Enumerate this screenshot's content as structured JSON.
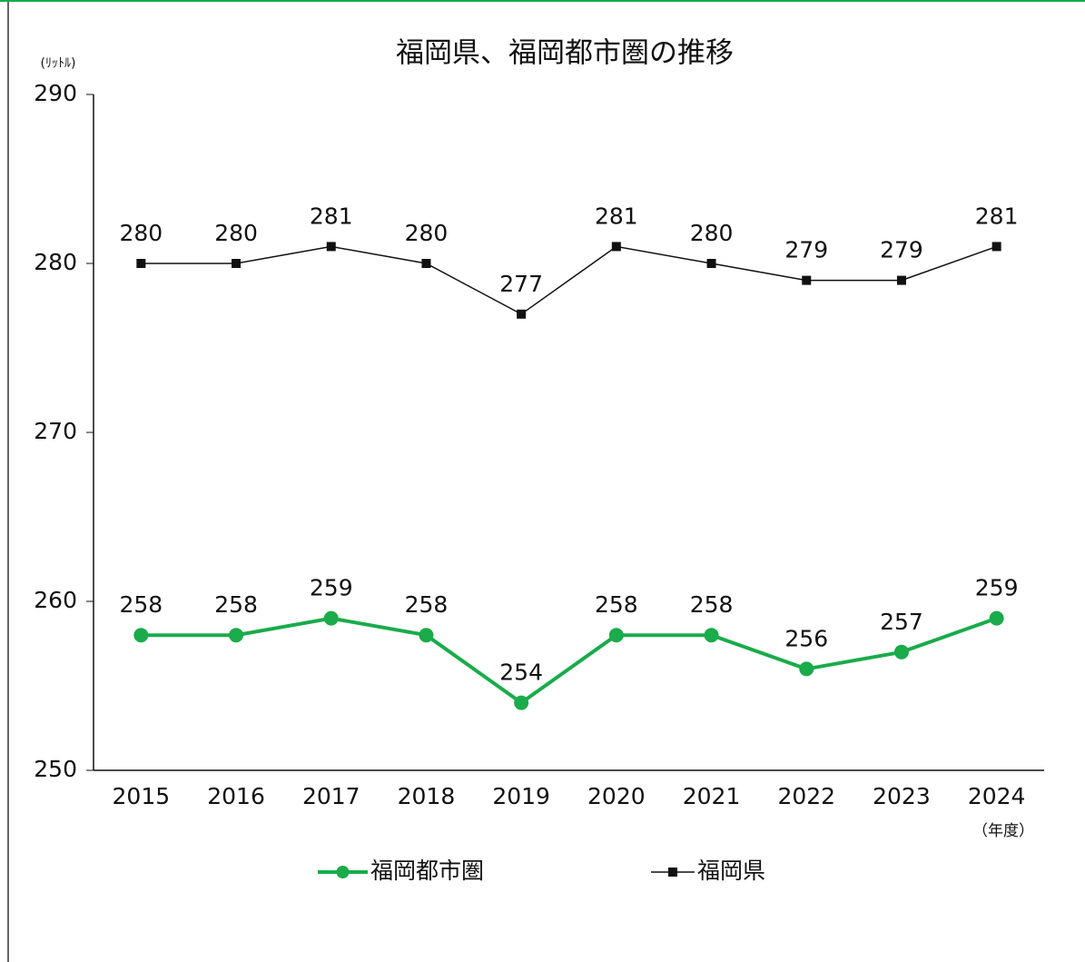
{
  "chart_data": {
    "type": "line",
    "title": "福岡県、福岡都市圏の推移",
    "y_axis_label": "(ﾘｯﾄﾙ)",
    "x_axis_label": "（年度）",
    "categories": [
      "2015",
      "2016",
      "2017",
      "2018",
      "2019",
      "2020",
      "2021",
      "2022",
      "2023",
      "2024"
    ],
    "series": [
      {
        "name": "福岡都市圏",
        "color": "#1aab4a",
        "marker": "circle",
        "values": [
          258,
          258,
          259,
          258,
          254,
          258,
          258,
          256,
          257,
          259
        ]
      },
      {
        "name": "福岡県",
        "color": "#111111",
        "marker": "square",
        "values": [
          280,
          280,
          281,
          280,
          277,
          281,
          280,
          279,
          279,
          281
        ]
      }
    ],
    "ylim": [
      250,
      290
    ],
    "yticks": [
      250,
      260,
      270,
      280,
      290
    ],
    "grid": false,
    "legend": "bottom"
  }
}
